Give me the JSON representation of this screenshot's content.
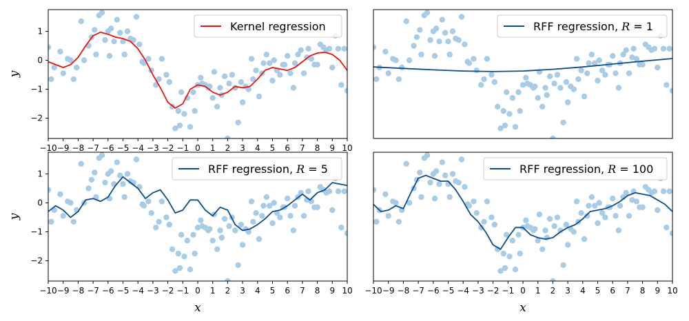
{
  "chart_data": [
    {
      "type": "scatter",
      "xlim": [
        -10,
        10
      ],
      "ylim": [
        -2.7,
        1.75
      ],
      "x_ticks": [
        "−10",
        "−9",
        "−8",
        "−7",
        "−6",
        "−5",
        "−4",
        "−3",
        "−2",
        "−1",
        "0",
        "1",
        "2",
        "3",
        "4",
        "5",
        "6",
        "7",
        "8",
        "9",
        "10"
      ],
      "y_ticks": [
        "1",
        "0",
        "−1",
        "−2"
      ],
      "xlabel": "",
      "ylabel": "y",
      "legend": {
        "label": "Kernel regression",
        "position": "top-right"
      },
      "series": [
        {
          "name": "Kernel regression",
          "style": "line",
          "color": "#e8140c",
          "x": [
            -10,
            -9,
            -8.5,
            -8,
            -7.5,
            -7,
            -6.5,
            -6,
            -5.5,
            -5,
            -4.5,
            -4,
            -3.5,
            -3,
            -2.5,
            -2,
            -1.5,
            -1,
            -0.5,
            0,
            0.5,
            1,
            1.5,
            2,
            2.5,
            3,
            3.5,
            4,
            4.5,
            5,
            5.5,
            6,
            6.5,
            7,
            7.5,
            8,
            8.5,
            9,
            9.5,
            10
          ],
          "y": [
            -0.05,
            -0.25,
            -0.15,
            0.1,
            0.5,
            0.85,
            0.97,
            0.9,
            0.8,
            0.75,
            0.65,
            0.4,
            0.0,
            -0.5,
            -0.95,
            -1.45,
            -1.65,
            -1.5,
            -1.0,
            -0.85,
            -0.9,
            -1.1,
            -1.2,
            -1.1,
            -0.9,
            -0.95,
            -0.9,
            -0.65,
            -0.35,
            -0.25,
            -0.3,
            -0.35,
            -0.25,
            -0.05,
            0.15,
            0.25,
            0.28,
            0.2,
            0.0,
            -0.35
          ]
        }
      ]
    },
    {
      "type": "scatter",
      "xlim": [
        -10,
        10
      ],
      "ylim": [
        -2.7,
        1.75
      ],
      "x_ticks": [],
      "y_ticks": [],
      "xlabel": "",
      "ylabel": "",
      "legend": {
        "label": "RFF regression, ",
        "var": "R",
        "suffix": " = 1",
        "position": "top-right"
      },
      "series": [
        {
          "name": "RFF regression, R = 1",
          "style": "line",
          "color": "#0b4a8b",
          "x": [
            -10,
            -8,
            -6,
            -4,
            -2,
            0,
            2,
            4,
            6,
            8,
            10
          ],
          "y": [
            -0.23,
            -0.28,
            -0.33,
            -0.37,
            -0.39,
            -0.37,
            -0.31,
            -0.23,
            -0.13,
            -0.03,
            0.06
          ]
        }
      ]
    },
    {
      "type": "scatter",
      "xlim": [
        -10,
        10
      ],
      "ylim": [
        -2.7,
        1.75
      ],
      "x_ticks": [
        "−10",
        "−9",
        "−8",
        "−7",
        "−6",
        "−5",
        "−4",
        "−3",
        "−2",
        "−1",
        "0",
        "1",
        "2",
        "3",
        "4",
        "5",
        "6",
        "7",
        "8",
        "9",
        "10"
      ],
      "y_ticks": [
        "1",
        "0",
        "−1",
        "−2"
      ],
      "xlabel": "x",
      "ylabel": "y",
      "legend": {
        "label": "RFF regression, ",
        "var": "R",
        "suffix": " = 5",
        "position": "top-right"
      },
      "series": [
        {
          "name": "RFF regression, R = 5",
          "style": "line",
          "color": "#0b4a8b",
          "x": [
            -10,
            -9.5,
            -9,
            -8.5,
            -8,
            -7.5,
            -7,
            -6.5,
            -6,
            -5.5,
            -5,
            -4.5,
            -4,
            -3.5,
            -3,
            -2.5,
            -2,
            -1.5,
            -1,
            -0.5,
            0,
            0.5,
            1,
            1.5,
            2,
            2.5,
            3,
            3.5,
            4,
            4.5,
            5,
            5.5,
            6,
            6.5,
            7,
            7.5,
            8,
            8.5,
            9,
            9.5,
            10
          ],
          "y": [
            -0.3,
            -0.1,
            -0.25,
            -0.5,
            -0.3,
            0.1,
            0.15,
            0.05,
            0.2,
            0.6,
            0.9,
            0.7,
            0.5,
            0.15,
            0.35,
            0.45,
            0.1,
            -0.35,
            -0.25,
            0.1,
            0.1,
            -0.25,
            -0.45,
            -0.15,
            -0.25,
            -0.75,
            -0.95,
            -0.9,
            -0.75,
            -0.55,
            -0.3,
            -0.25,
            -0.1,
            0.1,
            0.3,
            0.1,
            0.35,
            0.45,
            0.7,
            0.65,
            0.6
          ]
        }
      ]
    },
    {
      "type": "scatter",
      "xlim": [
        -10,
        10
      ],
      "ylim": [
        -2.7,
        1.75
      ],
      "x_ticks": [
        "−10",
        "−9",
        "−8",
        "−7",
        "−6",
        "−5",
        "−4",
        "−3",
        "−2",
        "−1",
        "0",
        "1",
        "2",
        "3",
        "4",
        "5",
        "6",
        "7",
        "8",
        "9",
        "10"
      ],
      "y_ticks": [],
      "xlabel": "x",
      "ylabel": "",
      "legend": {
        "label": "RFF regression, ",
        "var": "R",
        "suffix": " = 100",
        "position": "top-right"
      },
      "series": [
        {
          "name": "RFF regression, R = 100",
          "style": "line",
          "color": "#0b4a8b",
          "x": [
            -10,
            -9.5,
            -9,
            -8.5,
            -8,
            -7.5,
            -7,
            -6.5,
            -6,
            -5.5,
            -5,
            -4.5,
            -4,
            -3.5,
            -3,
            -2.5,
            -2,
            -1.5,
            -1,
            -0.5,
            0,
            0.5,
            1,
            1.5,
            2,
            2.5,
            3,
            3.5,
            4,
            4.5,
            5,
            5.5,
            6,
            6.5,
            7,
            7.5,
            8,
            8.5,
            9,
            9.5,
            10
          ],
          "y": [
            -0.05,
            -0.3,
            -0.25,
            -0.1,
            -0.2,
            0.35,
            0.85,
            0.95,
            0.85,
            0.75,
            0.75,
            0.45,
            0.05,
            -0.4,
            -0.65,
            -1.0,
            -1.45,
            -1.6,
            -1.2,
            -0.85,
            -0.85,
            -1.1,
            -1.2,
            -1.25,
            -1.2,
            -1.0,
            -0.85,
            -0.75,
            -0.55,
            -0.3,
            -0.25,
            -0.2,
            -0.1,
            0.05,
            0.25,
            0.35,
            0.3,
            0.25,
            0.1,
            -0.05,
            -0.3
          ]
        }
      ]
    }
  ],
  "scatter_points": {
    "color": "#a8cbe6",
    "x": [
      -10,
      -9.8,
      -9.6,
      -9.2,
      -9.0,
      -8.7,
      -8.5,
      -8.3,
      -8.1,
      -7.8,
      -7.6,
      -7.3,
      -7.1,
      -6.9,
      -6.8,
      -6.6,
      -6.4,
      -6.2,
      -6.0,
      -5.9,
      -5.8,
      -5.6,
      -5.4,
      -5.2,
      -5.0,
      -4.9,
      -4.7,
      -4.5,
      -4.3,
      -4.1,
      -3.9,
      -3.7,
      -3.6,
      -3.3,
      -3.1,
      -2.8,
      -2.6,
      -2.4,
      -2.1,
      -1.9,
      -1.7,
      -1.5,
      -1.3,
      -1.2,
      -1.1,
      -0.9,
      -0.7,
      -0.5,
      -0.3,
      -0.2,
      0.0,
      0.2,
      0.3,
      0.5,
      0.7,
      0.8,
      1.0,
      1.1,
      1.3,
      1.5,
      1.6,
      1.8,
      2.0,
      2.1,
      2.3,
      2.5,
      2.7,
      2.9,
      3.0,
      3.2,
      3.4,
      3.6,
      3.7,
      3.9,
      4.1,
      4.3,
      4.4,
      4.6,
      4.8,
      5.0,
      5.1,
      5.3,
      5.5,
      5.7,
      5.8,
      6.0,
      6.2,
      6.4,
      6.5,
      6.7,
      6.9,
      7.1,
      7.3,
      7.4,
      7.6,
      7.8,
      8.0,
      8.2,
      8.4,
      8.6,
      8.8,
      9.0,
      9.2,
      9.4,
      9.6,
      9.8,
      10
    ],
    "y": [
      0.45,
      -0.65,
      -0.25,
      0.3,
      -0.45,
      0.05,
      0.0,
      -0.65,
      -0.25,
      1.35,
      0.0,
      0.5,
      0.8,
      1.05,
      0.2,
      1.55,
      1.65,
      0.7,
      1.0,
      0.15,
      1.1,
      0.65,
      1.4,
      0.95,
      0.65,
      0.2,
      1.0,
      0.75,
      0.7,
      1.5,
      0.55,
      -0.05,
      -0.1,
      0.05,
      -0.35,
      -0.85,
      -0.65,
      0.05,
      -0.5,
      -0.75,
      -1.6,
      -2.35,
      -1.75,
      -2.25,
      -1.1,
      -1.85,
      -1.3,
      -2.3,
      -1.1,
      -1.75,
      -0.85,
      -0.6,
      -0.8,
      -0.85,
      -0.95,
      -0.9,
      -1.3,
      -0.4,
      -1.6,
      -0.95,
      -1.2,
      -0.55,
      -2.7,
      -0.8,
      -0.5,
      -0.95,
      -2.15,
      -0.75,
      -1.45,
      -0.9,
      -1.0,
      0.05,
      -0.65,
      -0.35,
      -1.25,
      -0.45,
      -0.1,
      0.2,
      -0.1,
      -0.7,
      0.0,
      -0.35,
      -0.5,
      -0.15,
      -0.15,
      0.15,
      -0.45,
      -0.95,
      -0.1,
      0.2,
      0.35,
      -0.45,
      0.1,
      0.4,
      0.05,
      -0.15,
      -0.15,
      0.55,
      0.45,
      0.35,
      0.4,
      -0.25,
      0.85,
      0.4,
      -0.85,
      0.4,
      -1.05
    ]
  }
}
